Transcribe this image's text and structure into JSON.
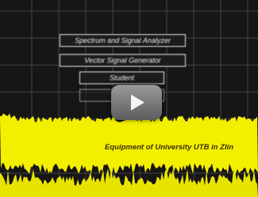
{
  "buttons": [
    "Spectrum and Signal Analyzer",
    "Vector Signal Generator",
    "Student"
  ],
  "caption": "Equipment of University UTB in Zlín"
}
